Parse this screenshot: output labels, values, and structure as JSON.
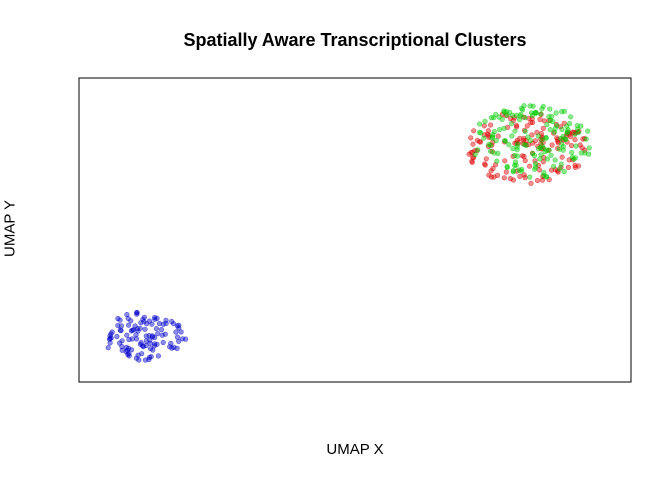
{
  "chart_data": {
    "type": "scatter",
    "title": "Spatially Aware Transcriptional Clusters",
    "xlabel": "UMAP X",
    "ylabel": "UMAP Y",
    "grid": false,
    "legend": "none",
    "axes_visible": false,
    "xlim": [
      0,
      10
    ],
    "ylim": [
      0,
      10
    ],
    "series": [
      {
        "color": "#0000cc",
        "cluster": {
          "center": [
            1.2,
            1.5
          ],
          "spread": [
            0.8,
            0.8
          ],
          "count": 110,
          "seed": 11
        }
      },
      {
        "color": "#dd0000",
        "cluster": {
          "center": [
            8.1,
            7.7
          ],
          "spread": [
            1.1,
            1.2
          ],
          "count": 150,
          "seed": 23
        }
      },
      {
        "color": "#00cc00",
        "cluster": {
          "center": [
            8.2,
            7.9
          ],
          "spread": [
            1.1,
            1.2
          ],
          "count": 150,
          "seed": 37
        }
      }
    ]
  }
}
